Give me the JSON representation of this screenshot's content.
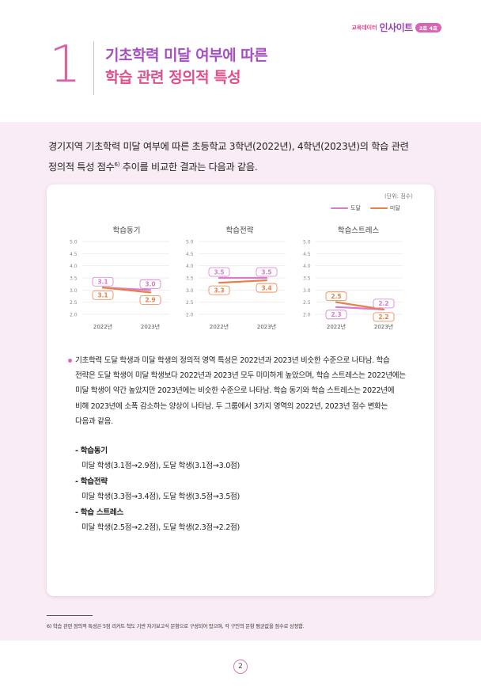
{
  "header": {
    "brand_small": "교육데이터",
    "brand_big": "인사이트",
    "badge": "2호 4호"
  },
  "section": {
    "number": "1",
    "title_line1": "기초학력 미달 여부에 따른",
    "title_line2": "학습 관련 정의적 특성"
  },
  "intro": {
    "line1": "경기지역 기초학력 미달 여부에 따른 초등학교 3학년(2022년), 4학년(2023년)의 학습 관련",
    "line2_before": "정의적 특성 점수",
    "line2_sup": "6)",
    "line2_after": " 추이를 비교한 결과는 다음과 같음."
  },
  "unit_label": "(단위: 점수)",
  "legend": {
    "item1": "도달",
    "item2": "미달",
    "color_reach": "#d77bcc",
    "color_below": "#e8804a"
  },
  "chart_data": [
    {
      "type": "line",
      "title": "학습동기",
      "x": [
        "2022년",
        "2023년"
      ],
      "yticks": [
        "5.0",
        "4.5",
        "4.0",
        "3.5",
        "3.0",
        "2.5",
        "2.0"
      ],
      "ylim": [
        2.0,
        5.0
      ],
      "series": [
        {
          "name": "도달",
          "values": [
            3.1,
            3.0
          ],
          "labels": [
            "3.1",
            "3.0"
          ]
        },
        {
          "name": "미달",
          "values": [
            3.1,
            2.9
          ],
          "labels": [
            "3.1",
            "2.9"
          ]
        }
      ]
    },
    {
      "type": "line",
      "title": "학습전략",
      "x": [
        "2022년",
        "2023년"
      ],
      "yticks": [
        "5.0",
        "4.5",
        "4.0",
        "3.5",
        "3.0",
        "2.5",
        "2.0"
      ],
      "ylim": [
        2.0,
        5.0
      ],
      "series": [
        {
          "name": "도달",
          "values": [
            3.5,
            3.5
          ],
          "labels": [
            "3.5",
            "3.5"
          ]
        },
        {
          "name": "미달",
          "values": [
            3.3,
            3.4
          ],
          "labels": [
            "3.3",
            "3.4"
          ]
        }
      ]
    },
    {
      "type": "line",
      "title": "학습스트레스",
      "x": [
        "2022년",
        "2023년"
      ],
      "yticks": [
        "5.0",
        "4.5",
        "4.0",
        "3.5",
        "3.0",
        "2.5",
        "2.0"
      ],
      "ylim": [
        2.0,
        5.0
      ],
      "series": [
        {
          "name": "도달",
          "values": [
            2.3,
            2.2
          ],
          "labels": [
            "2.3",
            "2.2"
          ]
        },
        {
          "name": "미달",
          "values": [
            2.5,
            2.2
          ],
          "labels": [
            "2.5",
            "2.2"
          ]
        }
      ]
    }
  ],
  "body": {
    "lines": [
      "기초학력 도달 학생과 미달 학생의 정의적 영역 특성은 2022년과 2023년 비슷한 수준으로 나타남. 학습",
      "전략은 도달 학생이 미달 학생보다 2022년과 2023년 모두 미미하게 높았으며, 학습 스트레스는 2022년에는",
      "미달 학생이 약간 높았지만 2023년에는 비슷한 수준으로 나타남. 학습 동기와 학습 스트레스는 2022년에",
      "비해 2023년에 소폭 감소하는 양상이 나타남. 두 그룹에서 3가지 영역의 2022년, 2023년 점수 변화는",
      "다음과 같음."
    ]
  },
  "summary": [
    {
      "head": "- 학습동기",
      "value": "미달 학생(3.1점→2.9점), 도달 학생(3.1점→3.0점)"
    },
    {
      "head": "- 학습전략",
      "value": "미달 학생(3.3점→3.4점), 도달 학생(3.5점→3.5점)"
    },
    {
      "head": "- 학습 스트레스",
      "value": "미달 학생(2.5점→2.2점), 도달 학생(2.3점→2.2점)"
    }
  ],
  "footnote": "6)  학습 관련 정의적 특성은 5점 리커트 척도 기반 자기보고식 문항으로 구성되어 있으며, 각 구인의 문항 평균값을 점수로 상정함.",
  "page_number": "2"
}
